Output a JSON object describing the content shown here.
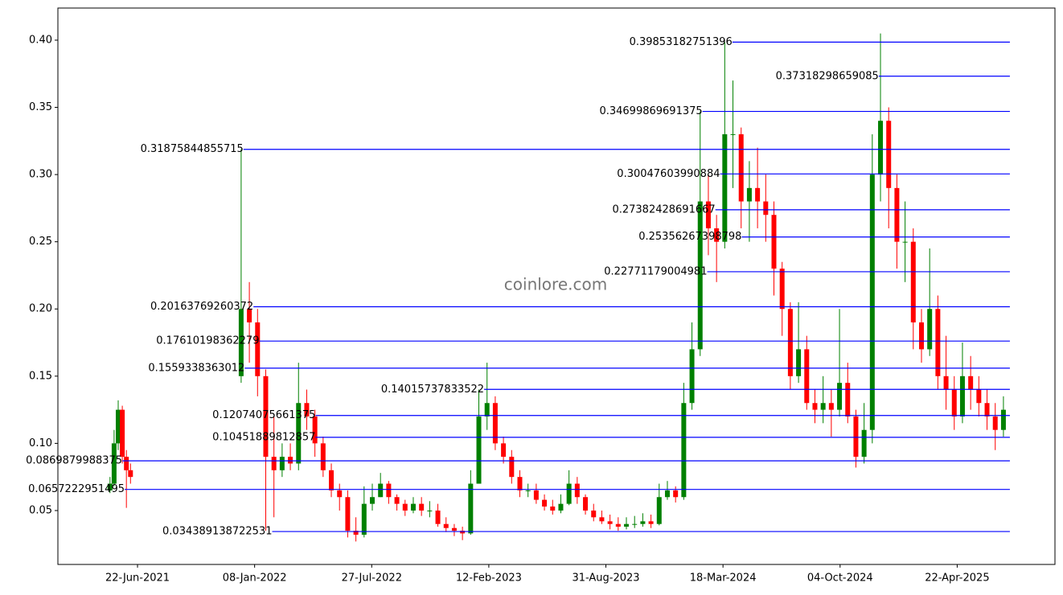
{
  "chart_data": {
    "type": "candlestick",
    "watermark": "coinlore.com",
    "xlim": [
      "2021-02-06",
      "2025-10-06"
    ],
    "xticks": [
      {
        "value": "2021-06-22",
        "label": "22-Jun-2021"
      },
      {
        "value": "2022-01-08",
        "label": "08-Jan-2022"
      },
      {
        "value": "2022-07-27",
        "label": "27-Jul-2022"
      },
      {
        "value": "2023-02-12",
        "label": "12-Feb-2023"
      },
      {
        "value": "2023-08-31",
        "label": "31-Aug-2023"
      },
      {
        "value": "2024-03-18",
        "label": "18-Mar-2024"
      },
      {
        "value": "2024-10-04",
        "label": "04-Oct-2024"
      },
      {
        "value": "2025-04-22",
        "label": "22-Apr-2025"
      }
    ],
    "ylim": [
      0.0099,
      0.4239
    ],
    "yticks": [
      0.05,
      {
        "value": 0.1,
        "label": "0.10"
      },
      0.15,
      {
        "value": 0.2,
        "label": "0.20"
      },
      0.25,
      {
        "value": 0.3,
        "label": "0.30"
      },
      0.35,
      {
        "value": 0.4,
        "label": "0.40"
      }
    ],
    "up_color": "#008000",
    "down_color": "#ff0000",
    "level_color": "#0000ff",
    "level_end": "2025-07-21",
    "levels": [
      {
        "value": 0.39853182751396,
        "start": "2024-04-03"
      },
      {
        "value": 0.37318298659085,
        "start": "2024-12-09"
      },
      {
        "value": 0.34699869691375,
        "start": "2024-02-12"
      },
      {
        "value": 0.31875844855715,
        "start": "2021-12-20"
      },
      {
        "value": 0.30047603990884,
        "start": "2024-03-13"
      },
      {
        "value": 0.27382428691667,
        "start": "2024-03-05"
      },
      {
        "value": 0.25356267398798,
        "start": "2024-04-19"
      },
      {
        "value": 0.22771179004981,
        "start": "2024-02-20"
      },
      {
        "value": 0.20163769260372,
        "start": "2022-01-06"
      },
      {
        "value": 0.17610198362279,
        "start": "2022-01-16"
      },
      {
        "value": 0.1559338363012,
        "start": "2021-12-22"
      },
      {
        "value": 0.14015737833522,
        "start": "2023-02-04"
      },
      {
        "value": 0.12074075661375,
        "start": "2022-04-22"
      },
      {
        "value": 0.10451889812857,
        "start": "2022-04-22"
      },
      {
        "value": 0.0869879988375,
        "start": "2021-05-27"
      },
      {
        "value": 0.0657222951495,
        "start": "2021-05-31"
      },
      {
        "value": 0.034389138722531,
        "start": "2022-02-07"
      }
    ],
    "x": [
      "2021-05-06",
      "2021-05-13",
      "2021-05-20",
      "2021-05-27",
      "2021-06-03",
      "2021-06-10",
      "2021-12-16",
      "2021-12-30",
      "2022-01-13",
      "2022-01-27",
      "2022-02-10",
      "2022-02-24",
      "2022-03-10",
      "2022-03-24",
      "2022-04-07",
      "2022-04-21",
      "2022-05-05",
      "2022-05-19",
      "2022-06-02",
      "2022-06-16",
      "2022-06-30",
      "2022-07-14",
      "2022-07-28",
      "2022-08-11",
      "2022-08-25",
      "2022-09-08",
      "2022-09-22",
      "2022-10-06",
      "2022-10-20",
      "2022-11-03",
      "2022-11-17",
      "2022-12-01",
      "2022-12-15",
      "2022-12-29",
      "2023-01-12",
      "2023-01-26",
      "2023-02-09",
      "2023-02-23",
      "2023-03-09",
      "2023-03-23",
      "2023-04-06",
      "2023-04-20",
      "2023-05-04",
      "2023-05-18",
      "2023-06-01",
      "2023-06-15",
      "2023-06-29",
      "2023-07-13",
      "2023-07-27",
      "2023-08-10",
      "2023-08-24",
      "2023-09-07",
      "2023-09-21",
      "2023-10-05",
      "2023-10-19",
      "2023-11-02",
      "2023-11-16",
      "2023-11-30",
      "2023-12-14",
      "2023-12-28",
      "2024-01-11",
      "2024-01-25",
      "2024-02-08",
      "2024-02-22",
      "2024-03-07",
      "2024-03-21",
      "2024-04-04",
      "2024-04-18",
      "2024-05-02",
      "2024-05-16",
      "2024-05-30",
      "2024-06-13",
      "2024-06-27",
      "2024-07-11",
      "2024-07-25",
      "2024-08-08",
      "2024-08-22",
      "2024-09-05",
      "2024-09-19",
      "2024-10-03",
      "2024-10-17",
      "2024-10-31",
      "2024-11-14",
      "2024-11-28",
      "2024-12-12",
      "2024-12-26",
      "2025-01-09",
      "2025-01-23",
      "2025-02-06",
      "2025-02-20",
      "2025-03-06",
      "2025-03-20",
      "2025-04-03",
      "2025-04-17",
      "2025-05-01",
      "2025-05-15",
      "2025-05-29",
      "2025-06-12",
      "2025-06-26",
      "2025-07-10"
    ],
    "open": [
      0.065,
      0.07,
      0.1,
      0.125,
      0.09,
      0.08,
      0.15,
      0.2,
      0.19,
      0.15,
      0.09,
      0.08,
      0.09,
      0.085,
      0.13,
      0.12,
      0.1,
      0.08,
      0.065,
      0.06,
      0.035,
      0.032,
      0.055,
      0.06,
      0.07,
      0.06,
      0.055,
      0.05,
      0.055,
      0.05,
      0.05,
      0.04,
      0.037,
      0.035,
      0.033,
      0.07,
      0.12,
      0.13,
      0.1,
      0.09,
      0.075,
      0.065,
      0.065,
      0.058,
      0.053,
      0.05,
      0.055,
      0.07,
      0.06,
      0.05,
      0.045,
      0.042,
      0.04,
      0.038,
      0.04,
      0.04,
      0.042,
      0.04,
      0.06,
      0.065,
      0.06,
      0.13,
      0.17,
      0.28,
      0.26,
      0.25,
      0.33,
      0.33,
      0.28,
      0.29,
      0.28,
      0.27,
      0.23,
      0.2,
      0.15,
      0.17,
      0.13,
      0.125,
      0.13,
      0.125,
      0.145,
      0.12,
      0.09,
      0.11,
      0.3,
      0.34,
      0.29,
      0.25,
      0.25,
      0.19,
      0.17,
      0.2,
      0.15,
      0.14,
      0.12,
      0.15,
      0.14,
      0.13,
      0.12,
      0.11
    ],
    "high": [
      0.075,
      0.11,
      0.132,
      0.128,
      0.095,
      0.085,
      0.3188,
      0.22,
      0.2,
      0.155,
      0.12,
      0.1,
      0.1,
      0.16,
      0.14,
      0.125,
      0.105,
      0.085,
      0.07,
      0.065,
      0.045,
      0.068,
      0.07,
      0.078,
      0.072,
      0.062,
      0.058,
      0.06,
      0.06,
      0.057,
      0.055,
      0.045,
      0.04,
      0.038,
      0.08,
      0.14,
      0.16,
      0.135,
      0.105,
      0.095,
      0.08,
      0.07,
      0.07,
      0.062,
      0.058,
      0.062,
      0.08,
      0.075,
      0.062,
      0.055,
      0.05,
      0.047,
      0.045,
      0.045,
      0.046,
      0.048,
      0.047,
      0.07,
      0.072,
      0.068,
      0.145,
      0.19,
      0.347,
      0.3,
      0.27,
      0.3985,
      0.37,
      0.335,
      0.31,
      0.32,
      0.3,
      0.28,
      0.235,
      0.205,
      0.205,
      0.18,
      0.14,
      0.15,
      0.14,
      0.2,
      0.16,
      0.125,
      0.13,
      0.33,
      0.405,
      0.35,
      0.3,
      0.28,
      0.26,
      0.2,
      0.245,
      0.21,
      0.18,
      0.15,
      0.175,
      0.165,
      0.15,
      0.14,
      0.13,
      0.135
    ],
    "low": [
      0.063,
      0.068,
      0.095,
      0.085,
      0.052,
      0.07,
      0.145,
      0.16,
      0.135,
      0.035,
      0.045,
      0.075,
      0.08,
      0.08,
      0.11,
      0.09,
      0.075,
      0.06,
      0.05,
      0.03,
      0.027,
      0.03,
      0.05,
      0.06,
      0.055,
      0.05,
      0.046,
      0.048,
      0.046,
      0.045,
      0.038,
      0.034,
      0.031,
      0.028,
      0.032,
      0.07,
      0.11,
      0.095,
      0.085,
      0.07,
      0.06,
      0.06,
      0.055,
      0.05,
      0.047,
      0.048,
      0.054,
      0.055,
      0.047,
      0.042,
      0.04,
      0.036,
      0.035,
      0.036,
      0.037,
      0.038,
      0.037,
      0.039,
      0.058,
      0.056,
      0.058,
      0.125,
      0.165,
      0.24,
      0.22,
      0.245,
      0.29,
      0.26,
      0.25,
      0.26,
      0.25,
      0.21,
      0.18,
      0.14,
      0.145,
      0.125,
      0.115,
      0.115,
      0.105,
      0.12,
      0.115,
      0.082,
      0.085,
      0.1,
      0.28,
      0.26,
      0.23,
      0.22,
      0.17,
      0.16,
      0.165,
      0.14,
      0.125,
      0.11,
      0.115,
      0.125,
      0.12,
      0.11,
      0.095,
      0.105
    ],
    "close": [
      0.07,
      0.1,
      0.125,
      0.09,
      0.08,
      0.075,
      0.2,
      0.19,
      0.15,
      0.09,
      0.08,
      0.09,
      0.085,
      0.13,
      0.12,
      0.1,
      0.08,
      0.065,
      0.06,
      0.035,
      0.032,
      0.055,
      0.06,
      0.07,
      0.06,
      0.055,
      0.05,
      0.055,
      0.05,
      0.05,
      0.04,
      0.037,
      0.035,
      0.033,
      0.07,
      0.12,
      0.13,
      0.1,
      0.09,
      0.075,
      0.065,
      0.065,
      0.058,
      0.053,
      0.05,
      0.055,
      0.07,
      0.06,
      0.05,
      0.045,
      0.042,
      0.04,
      0.038,
      0.04,
      0.04,
      0.042,
      0.04,
      0.06,
      0.065,
      0.06,
      0.13,
      0.17,
      0.28,
      0.26,
      0.25,
      0.33,
      0.33,
      0.28,
      0.29,
      0.28,
      0.27,
      0.23,
      0.2,
      0.15,
      0.17,
      0.13,
      0.125,
      0.13,
      0.125,
      0.145,
      0.12,
      0.09,
      0.11,
      0.3,
      0.34,
      0.29,
      0.25,
      0.25,
      0.19,
      0.17,
      0.2,
      0.15,
      0.14,
      0.12,
      0.15,
      0.14,
      0.13,
      0.12,
      0.11,
      0.125
    ]
  }
}
